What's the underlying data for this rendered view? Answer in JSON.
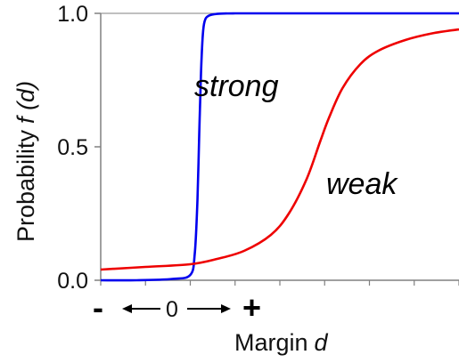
{
  "chart_data": {
    "type": "line",
    "title": "",
    "ylabel": "Probability",
    "ylabel_symbol": "f (d)",
    "xlabel": "Margin",
    "xlabel_symbol": "d",
    "ylim": [
      0,
      1
    ],
    "xlim": [
      -1,
      3
    ],
    "y_ticks": [
      "0.0",
      "0.5",
      "1.0"
    ],
    "y_tick_values": [
      0,
      0.5,
      1
    ],
    "x_zero_label": "0",
    "x_minus_label": "-",
    "x_plus_label": "+",
    "grid": false,
    "series": [
      {
        "name": "strong",
        "color": "#0000ee",
        "x": [
          -1.0,
          -0.6,
          -0.2,
          0.0,
          0.05,
          0.08,
          0.1,
          0.12,
          0.14,
          0.16,
          0.2,
          0.3,
          0.5,
          1.0,
          2.0,
          3.0
        ],
        "y": [
          0.0,
          0.0,
          0.005,
          0.02,
          0.1,
          0.3,
          0.55,
          0.78,
          0.92,
          0.97,
          0.99,
          0.998,
          1.0,
          1.0,
          1.0,
          1.0
        ]
      },
      {
        "name": "weak",
        "color": "#ee0000",
        "x": [
          -1.0,
          -0.5,
          0.0,
          0.3,
          0.6,
          0.9,
          1.1,
          1.3,
          1.45,
          1.55,
          1.7,
          1.9,
          2.1,
          2.4,
          2.7,
          3.0
        ],
        "y": [
          0.04,
          0.05,
          0.06,
          0.08,
          0.11,
          0.17,
          0.25,
          0.38,
          0.52,
          0.61,
          0.72,
          0.81,
          0.86,
          0.9,
          0.925,
          0.94
        ]
      }
    ],
    "annotations": [
      "strong",
      "weak"
    ]
  }
}
